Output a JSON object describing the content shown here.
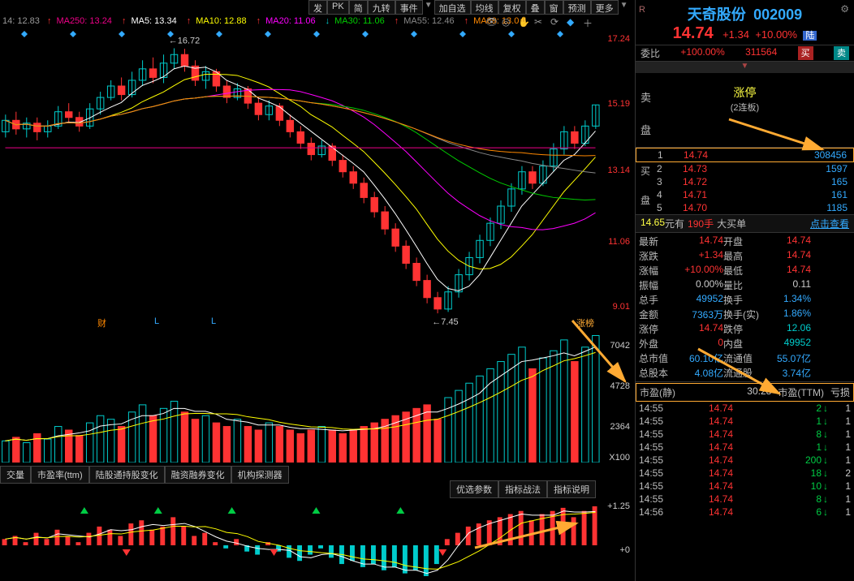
{
  "toolbar": {
    "items": [
      "发",
      "PK",
      "简",
      "九转",
      "事件",
      "加自选",
      "均线",
      "复权",
      "叠",
      "窗",
      "预测",
      "更多"
    ]
  },
  "ma_legend": [
    {
      "label": "MA250:",
      "v": "13.24",
      "c": "#e08",
      "dir": "up"
    },
    {
      "label": "MA5:",
      "v": "13.34",
      "c": "#fff",
      "dir": "up"
    },
    {
      "label": "MA10:",
      "v": "12.88",
      "c": "#ff0",
      "dir": "up"
    },
    {
      "label": "MA20:",
      "v": "11.06",
      "c": "#f0f",
      "dir": "up"
    },
    {
      "label": "MA30:",
      "v": "11.06",
      "c": "#0c0",
      "dir": "dn"
    },
    {
      "label": "MA55:",
      "v": "12.46",
      "c": "#888",
      "dir": "up"
    },
    {
      "label": "MA89:",
      "v": "13.0",
      "c": "#f80",
      "dir": "up"
    }
  ],
  "ma_prefix": "14: 12.83",
  "price_axis": {
    "values": [
      "17.24",
      "15.19",
      "13.14",
      "11.06",
      "9.01"
    ],
    "positions": [
      10,
      90,
      172,
      260,
      340
    ],
    "color": "#f33"
  },
  "chart_anno": {
    "high": "16.72",
    "low": "7.45"
  },
  "markers": [
    "财",
    "L",
    "L"
  ],
  "marker_right": "涨榜",
  "vol_axis": {
    "values": [
      "7042",
      "4728",
      "2364",
      "X100"
    ],
    "positions": [
      10,
      60,
      110,
      148
    ]
  },
  "macd_axis": {
    "values": [
      "+1.25",
      "+0"
    ],
    "positions": [
      8,
      62
    ]
  },
  "bottom_tabs": [
    "交量",
    "市盈率(ttm)",
    "陆股通持股变化",
    "融资融券变化",
    "机构探测器"
  ],
  "macd_tb": [
    "优选参数",
    "指标战法",
    "指标说明"
  ],
  "stock": {
    "name": "天奇股份",
    "code": "002009",
    "price": "14.74",
    "chg": "+1.34",
    "pct": "+10.00%",
    "lu": "陆",
    "r": "R"
  },
  "weibi": {
    "lbl": "委比",
    "v": "+100.00%",
    "q": "311564",
    "buy": "买",
    "sell": "卖"
  },
  "zhangting": {
    "t1": "涨停",
    "t2": "(2连板)",
    "sell_lbl": "卖",
    "pan_lbl": "盘"
  },
  "buy_lbl": "买",
  "pan_lbl2": "盘",
  "bids": [
    {
      "n": "1",
      "p": "14.74",
      "v": "308456"
    },
    {
      "n": "2",
      "p": "14.73",
      "v": "1597"
    },
    {
      "n": "3",
      "p": "14.72",
      "v": "165"
    },
    {
      "n": "4",
      "p": "14.71",
      "v": "161"
    },
    {
      "n": "5",
      "p": "14.70",
      "v": "1185"
    }
  ],
  "infobar": {
    "p": "14.65",
    "u": "元有",
    "h": "190手",
    "l": "大买单",
    "link": "点击查看"
  },
  "stats": [
    [
      "最新",
      "14.74",
      "r",
      "开盘",
      "14.74",
      "r"
    ],
    [
      "涨跌",
      "+1.34",
      "r",
      "最高",
      "14.74",
      "r"
    ],
    [
      "涨幅",
      "+10.00%",
      "r",
      "最低",
      "14.74",
      "r"
    ],
    [
      "振幅",
      "0.00%",
      "w",
      "量比",
      "0.11",
      "w"
    ],
    [
      "总手",
      "49952",
      "b",
      "换手",
      "1.34%",
      "b"
    ],
    [
      "金额",
      "7363万",
      "b",
      "换手(实)",
      "1.86%",
      "b"
    ],
    [
      "涨停",
      "14.74",
      "r",
      "跌停",
      "12.06",
      "g"
    ],
    [
      "外盘",
      "0",
      "r",
      "内盘",
      "49952",
      "g"
    ],
    [
      "总市值",
      "60.10亿",
      "b",
      "流通值",
      "55.07亿",
      "b"
    ],
    [
      "总股本",
      "4.08亿",
      "b",
      "流通股",
      "3.74亿",
      "b"
    ]
  ],
  "pe": {
    "l1": "市盈(静)",
    "v1": "30.28",
    "l2": "市盈(TTM)",
    "v2": "亏损"
  },
  "ticks": [
    {
      "t": "14:55",
      "p": "14.74",
      "v": "2",
      "d": "g",
      "e": "1"
    },
    {
      "t": "14:55",
      "p": "14.74",
      "v": "1",
      "d": "g",
      "e": "1"
    },
    {
      "t": "14:55",
      "p": "14.74",
      "v": "8",
      "d": "g",
      "e": "1"
    },
    {
      "t": "14:55",
      "p": "14.74",
      "v": "1",
      "d": "g",
      "e": "1"
    },
    {
      "t": "14:55",
      "p": "14.74",
      "v": "200",
      "d": "g",
      "e": "1"
    },
    {
      "t": "14:55",
      "p": "14.74",
      "v": "18",
      "d": "g",
      "e": "2"
    },
    {
      "t": "14:55",
      "p": "14.74",
      "v": "10",
      "d": "g",
      "e": "1"
    },
    {
      "t": "14:55",
      "p": "14.74",
      "v": "8",
      "d": "g",
      "e": "1"
    },
    {
      "t": "14:56",
      "p": "14.74",
      "v": "6",
      "d": "g",
      "e": "1"
    }
  ],
  "candles": {
    "comment": "o/c/h/l values on 7-17 scale; up=cyan, dn=red",
    "bars": [
      [
        13.8,
        14.2,
        14.4,
        13.6
      ],
      [
        14.2,
        13.9,
        14.5,
        13.7
      ],
      [
        13.9,
        14.1,
        14.3,
        13.6
      ],
      [
        14.1,
        13.8,
        14.3,
        13.5
      ],
      [
        13.8,
        14.0,
        14.2,
        13.6
      ],
      [
        14.0,
        14.5,
        14.7,
        13.9
      ],
      [
        14.5,
        14.3,
        14.8,
        14.1
      ],
      [
        14.3,
        14.0,
        14.5,
        13.8
      ],
      [
        14.0,
        14.6,
        14.8,
        13.9
      ],
      [
        14.6,
        15.0,
        15.2,
        14.4
      ],
      [
        15.0,
        15.4,
        15.6,
        14.9
      ],
      [
        15.4,
        15.1,
        15.7,
        14.9
      ],
      [
        15.1,
        15.6,
        15.9,
        15.0
      ],
      [
        15.6,
        16.0,
        16.3,
        15.4
      ],
      [
        16.0,
        15.7,
        16.4,
        15.5
      ],
      [
        15.7,
        16.2,
        16.5,
        15.5
      ],
      [
        16.2,
        16.5,
        16.72,
        16.0
      ],
      [
        16.5,
        16.1,
        16.7,
        15.9
      ],
      [
        16.1,
        15.6,
        16.3,
        15.4
      ],
      [
        15.6,
        15.9,
        16.1,
        15.3
      ],
      [
        15.9,
        15.4,
        16.0,
        15.2
      ],
      [
        15.4,
        15.0,
        15.6,
        14.8
      ],
      [
        15.0,
        15.3,
        15.5,
        14.9
      ],
      [
        15.3,
        14.8,
        15.4,
        14.6
      ],
      [
        14.8,
        14.4,
        15.0,
        14.2
      ],
      [
        14.4,
        14.7,
        14.9,
        14.2
      ],
      [
        14.7,
        14.2,
        14.8,
        14.0
      ],
      [
        14.2,
        13.8,
        14.4,
        13.6
      ],
      [
        13.8,
        13.4,
        14.0,
        13.2
      ],
      [
        13.4,
        13.0,
        13.6,
        12.8
      ],
      [
        13.0,
        13.3,
        13.5,
        12.9
      ],
      [
        13.3,
        12.8,
        13.4,
        12.6
      ],
      [
        12.8,
        12.4,
        13.0,
        12.2
      ],
      [
        12.4,
        12.0,
        12.6,
        11.8
      ],
      [
        12.0,
        11.5,
        12.2,
        11.3
      ],
      [
        11.5,
        11.0,
        11.7,
        10.8
      ],
      [
        11.0,
        10.4,
        11.2,
        10.2
      ],
      [
        10.4,
        9.8,
        10.6,
        9.6
      ],
      [
        9.8,
        9.2,
        10.0,
        9.0
      ],
      [
        9.2,
        8.6,
        9.4,
        8.4
      ],
      [
        8.6,
        8.0,
        8.8,
        7.8
      ],
      [
        8.0,
        7.6,
        8.2,
        7.45
      ],
      [
        7.6,
        8.2,
        8.4,
        7.5
      ],
      [
        8.2,
        8.8,
        9.0,
        8.0
      ],
      [
        8.8,
        9.4,
        9.6,
        8.6
      ],
      [
        9.4,
        10.0,
        10.2,
        9.2
      ],
      [
        10.0,
        10.6,
        10.8,
        9.8
      ],
      [
        10.6,
        11.2,
        11.4,
        10.4
      ],
      [
        11.2,
        11.8,
        12.0,
        11.0
      ],
      [
        11.8,
        12.4,
        12.6,
        11.6
      ],
      [
        12.4,
        12.0,
        12.6,
        11.8
      ],
      [
        12.0,
        12.6,
        12.8,
        11.9
      ],
      [
        12.6,
        13.2,
        13.4,
        12.4
      ],
      [
        13.2,
        13.8,
        14.0,
        13.0
      ],
      [
        13.8,
        13.4,
        14.0,
        13.2
      ],
      [
        13.4,
        14.0,
        14.2,
        13.3
      ],
      [
        14.0,
        14.74,
        14.74,
        13.9
      ]
    ]
  },
  "ma_lines": {
    "ma5": {
      "c": "#fff"
    },
    "ma10": {
      "c": "#ff0"
    },
    "ma20": {
      "c": "#f0f"
    },
    "ma30": {
      "c": "#0c0"
    },
    "ma55": {
      "c": "#888"
    },
    "ma89": {
      "c": "#f80"
    },
    "ma250": {
      "c": "#e08"
    }
  },
  "volumes": [
    1200,
    1400,
    1100,
    1600,
    1300,
    2000,
    1800,
    1500,
    2200,
    2600,
    2400,
    2000,
    2800,
    3200,
    2600,
    3000,
    3400,
    2800,
    2400,
    2600,
    2200,
    2000,
    2400,
    2000,
    1800,
    2200,
    2000,
    1800,
    1600,
    1800,
    2000,
    1800,
    1600,
    1800,
    2000,
    2200,
    2400,
    2600,
    2800,
    3000,
    3200,
    2400,
    3600,
    4000,
    4400,
    4800,
    5200,
    5600,
    6000,
    6400,
    5200,
    5800,
    6200,
    6800,
    5600,
    6400,
    7042
  ],
  "macd": [
    0.2,
    0.3,
    0.1,
    0.4,
    0.2,
    0.5,
    0.3,
    0.1,
    0.4,
    0.6,
    0.5,
    0.3,
    0.7,
    0.8,
    0.5,
    0.6,
    0.9,
    0.6,
    0.3,
    0.4,
    0.1,
    -0.1,
    0.2,
    -0.2,
    -0.3,
    0.1,
    -0.2,
    -0.4,
    -0.5,
    -0.3,
    -0.1,
    -0.4,
    -0.6,
    -0.5,
    -0.7,
    -0.6,
    -0.8,
    -0.7,
    -0.9,
    -0.8,
    -1.0,
    -0.6,
    0.2,
    0.4,
    0.6,
    0.7,
    0.8,
    0.9,
    1.0,
    1.1,
    0.8,
    1.0,
    1.1,
    1.2,
    0.9,
    1.1,
    1.25
  ]
}
